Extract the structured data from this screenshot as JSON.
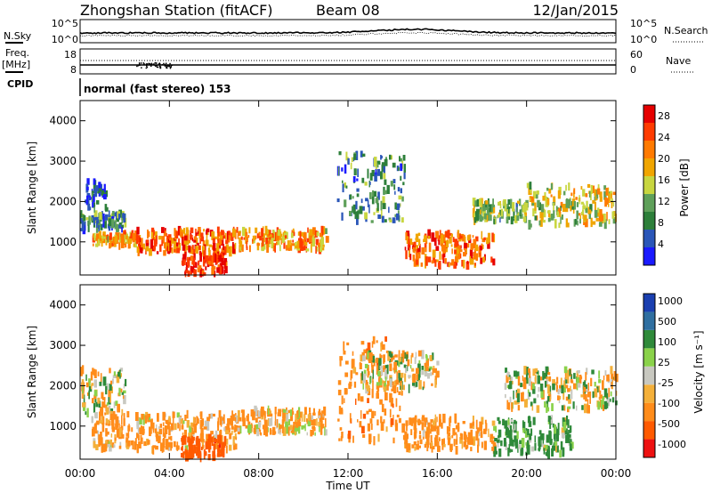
{
  "header": {
    "station_title": "Zhongshan Station (fitACF)",
    "beam_label": "Beam 08",
    "date": "12/Jan/2015"
  },
  "noise_panel": {
    "left_label": "N.Sky",
    "left_ticks": [
      "10^5",
      "10^0"
    ],
    "right_ticks": [
      "10^5",
      "10^0"
    ],
    "right_label": "N.Search"
  },
  "freq_panel": {
    "left_label_1": "Freq.",
    "left_label_2": "[MHz]",
    "left_ticks": [
      "18",
      "8"
    ],
    "right_ticks": [
      "60",
      "0"
    ],
    "right_label": "Nave"
  },
  "cpid": {
    "label": "CPID",
    "value": "normal (fast stereo) 153"
  },
  "colors": {
    "power_scale": [
      "#1a1aff",
      "#2a56b8",
      "#2d7f3a",
      "#5fa05a",
      "#c8d640",
      "#f0a500",
      "#ff7a00",
      "#ff3b00",
      "#e60000"
    ],
    "velocity_scale": [
      "#ee1111",
      "#ff5a00",
      "#ff8c1a",
      "#f4b03a",
      "#c8c8c0",
      "#8ad24a",
      "#2f8a3a",
      "#2f6fa0",
      "#1a3fb0"
    ]
  },
  "chart_data": [
    {
      "type": "heatmap",
      "panel": "power",
      "ylabel": "Slant Range [km]",
      "yticks": [
        "1000",
        "2000",
        "3000",
        "4000"
      ],
      "ylim": [
        180,
        4500
      ],
      "x_ticks": [
        "00:00",
        "04:00",
        "08:00",
        "12:00",
        "16:00",
        "20:00",
        "00:00"
      ],
      "colorbar_label": "Power [dB]",
      "colorbar_ticks": [
        "4",
        "8",
        "12",
        "16",
        "20",
        "24",
        "28"
      ],
      "colorbar_range": [
        0,
        30
      ],
      "echo_regions": [
        {
          "t": [
            0.0,
            2.0
          ],
          "range": [
            1300,
            1700
          ],
          "level": 8
        },
        {
          "t": [
            0.5,
            2.5
          ],
          "range": [
            900,
            1200
          ],
          "level": 20
        },
        {
          "t": [
            2.5,
            7.0
          ],
          "range": [
            700,
            1300
          ],
          "level": 24
        },
        {
          "t": [
            4.5,
            6.5
          ],
          "range": [
            200,
            700
          ],
          "level": 28
        },
        {
          "t": [
            0.2,
            1.2
          ],
          "range": [
            1800,
            2500
          ],
          "level": 4
        },
        {
          "t": [
            7.0,
            11.0
          ],
          "range": [
            800,
            1300
          ],
          "level": 20
        },
        {
          "t": [
            11.5,
            14.5
          ],
          "range": [
            1500,
            3200
          ],
          "level": 8
        },
        {
          "t": [
            14.5,
            18.5
          ],
          "range": [
            400,
            1200
          ],
          "level": 24
        },
        {
          "t": [
            17.5,
            20.0
          ],
          "range": [
            1500,
            2000
          ],
          "level": 12
        },
        {
          "t": [
            20.0,
            24.0
          ],
          "range": [
            1400,
            2400
          ],
          "level": 16
        }
      ]
    },
    {
      "type": "heatmap",
      "panel": "velocity",
      "ylabel": "Slant Range [km]",
      "yticks": [
        "1000",
        "2000",
        "3000",
        "4000"
      ],
      "ylim": [
        180,
        4500
      ],
      "x_ticks": [
        "00:00",
        "04:00",
        "08:00",
        "12:00",
        "16:00",
        "20:00",
        "00:00"
      ],
      "xlabel": "Time UT",
      "colorbar_label": "Velocity [m s⁻¹]",
      "colorbar_ticks": [
        "1000",
        "500",
        "100",
        "25",
        "-25",
        "-100",
        "-500",
        "-1000"
      ],
      "echo_regions": [
        {
          "t": [
            0.0,
            2.0
          ],
          "range": [
            1300,
            2400
          ],
          "v": 0
        },
        {
          "t": [
            0.5,
            7.0
          ],
          "range": [
            400,
            1300
          ],
          "v": -200
        },
        {
          "t": [
            4.5,
            6.5
          ],
          "range": [
            200,
            700
          ],
          "v": -800
        },
        {
          "t": [
            7.0,
            11.0
          ],
          "range": [
            800,
            1400
          ],
          "v": -150
        },
        {
          "t": [
            11.5,
            14.5
          ],
          "range": [
            600,
            3200
          ],
          "v": -300
        },
        {
          "t": [
            14.5,
            18.5
          ],
          "range": [
            400,
            1200
          ],
          "v": -250
        },
        {
          "t": [
            18.5,
            22.0
          ],
          "range": [
            300,
            1200
          ],
          "v": 200
        },
        {
          "t": [
            19.0,
            24.0
          ],
          "range": [
            1400,
            2400
          ],
          "v": 0
        },
        {
          "t": [
            12.5,
            16.0
          ],
          "range": [
            1900,
            2800
          ],
          "v": 0
        }
      ]
    }
  ]
}
